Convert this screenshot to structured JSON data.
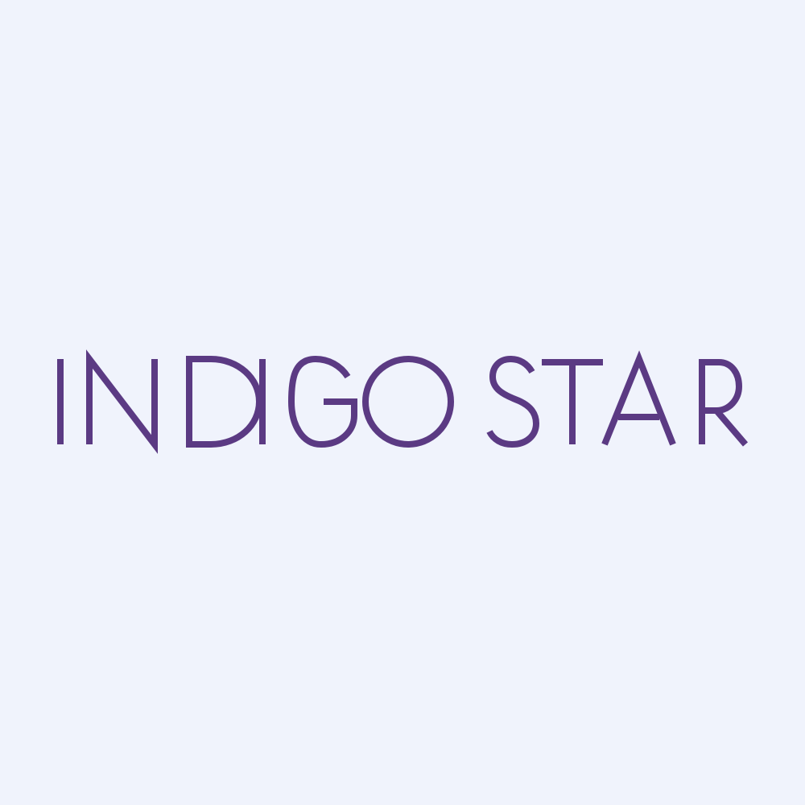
{
  "logo": {
    "text": "INDIGO STAR",
    "color": "#5B3A83",
    "background": "#F0F3FC"
  }
}
